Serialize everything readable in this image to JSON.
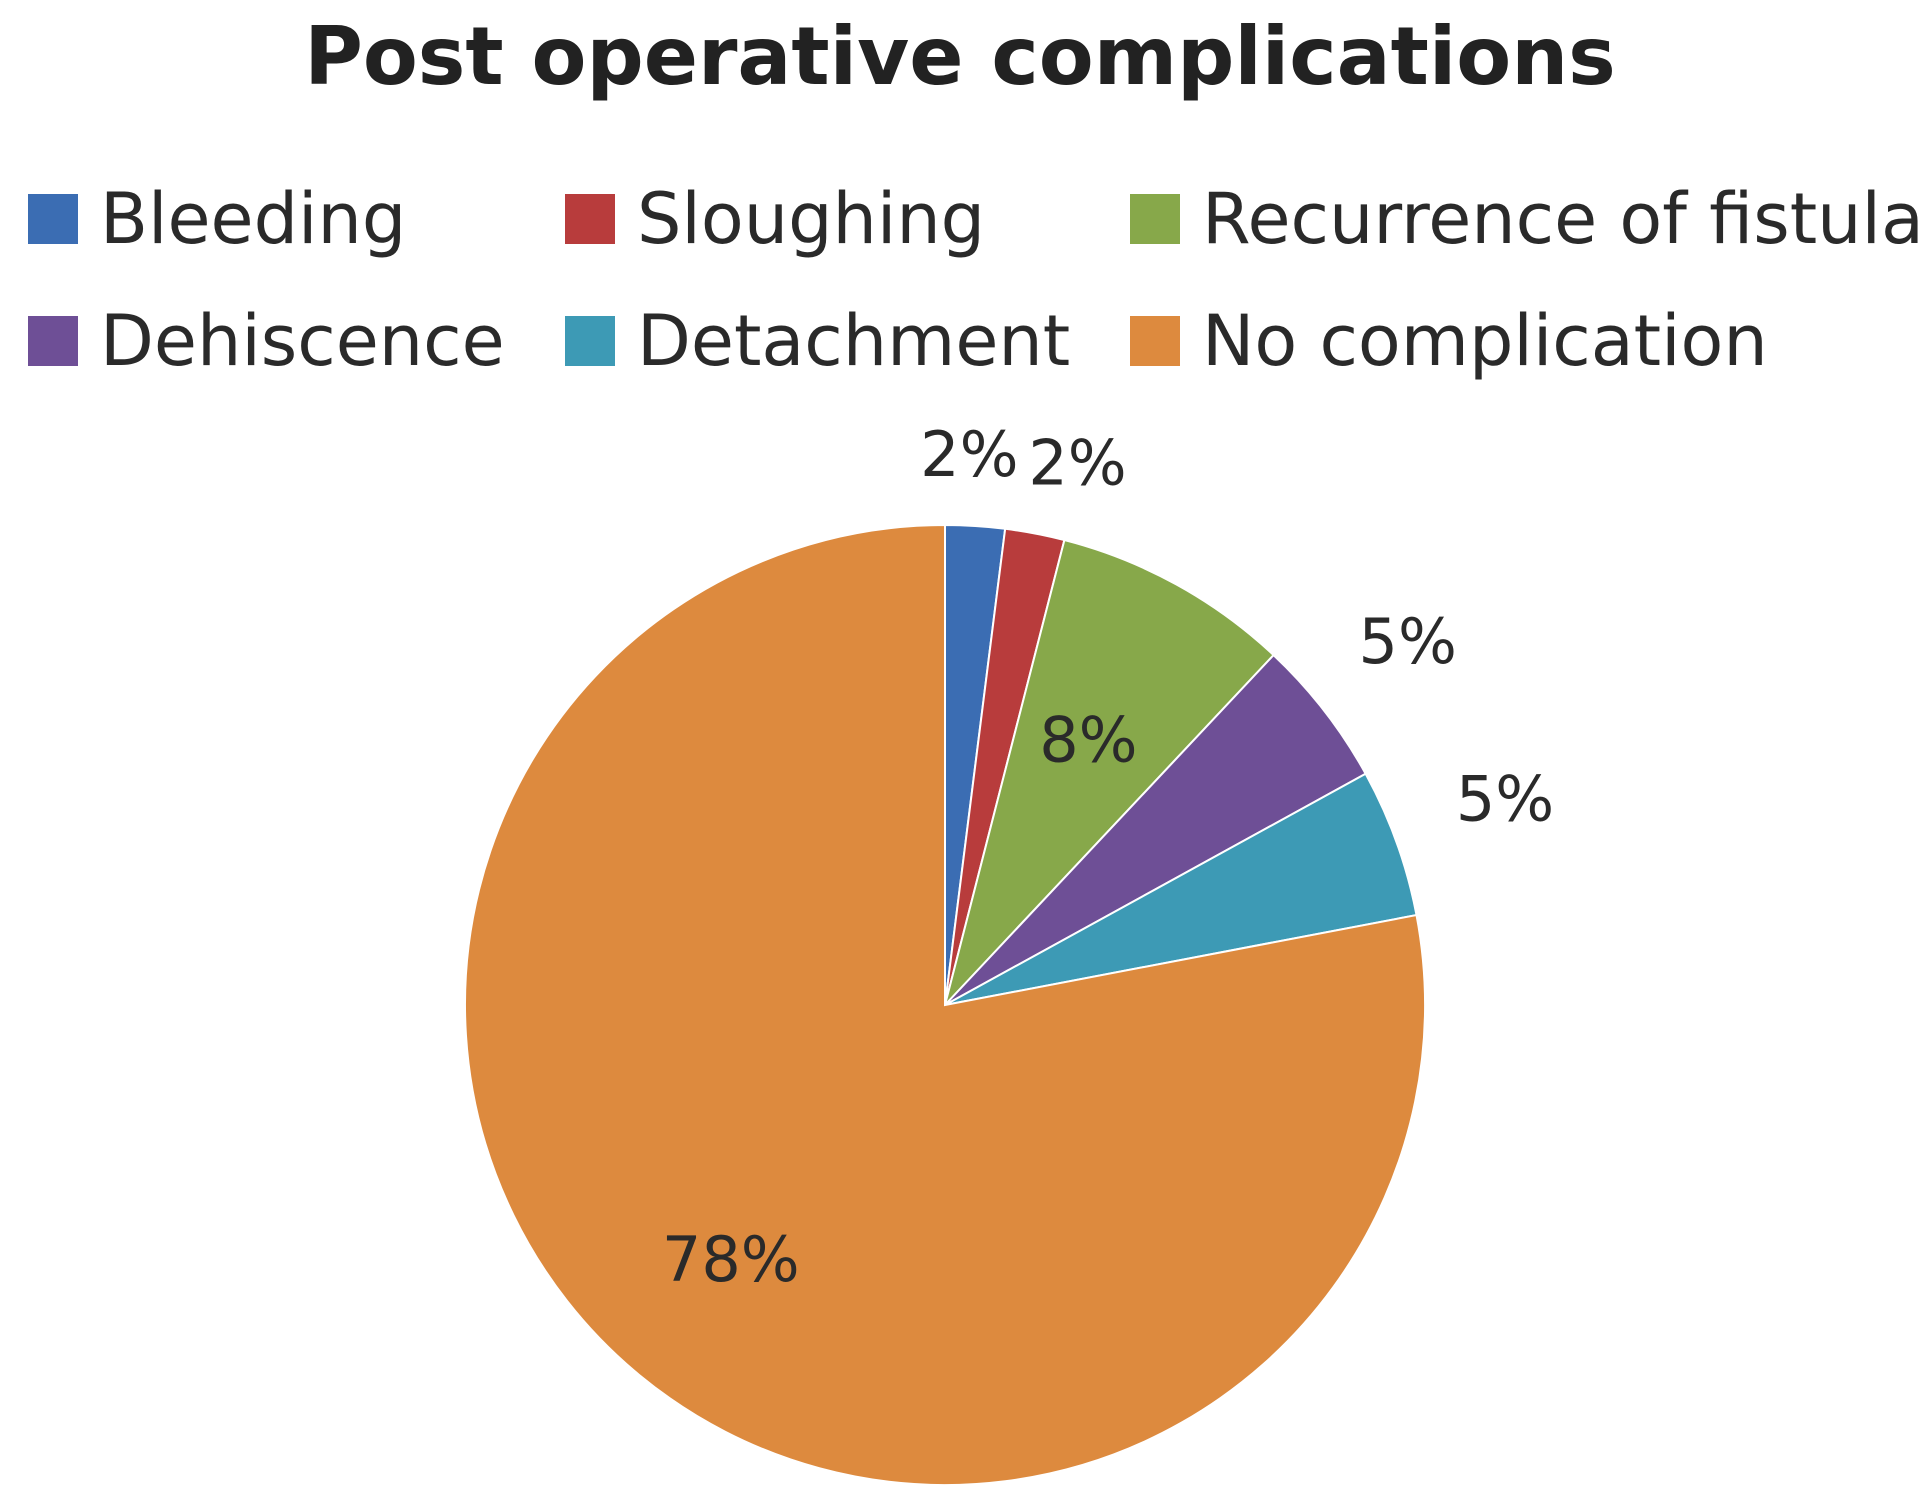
{
  "chart_data": {
    "type": "pie",
    "title": "Post operative complications",
    "categories": [
      "Bleeding",
      "Sloughing",
      "Recurrence of fistula",
      "Dehiscence",
      "Detachment",
      "No complication"
    ],
    "values": [
      2,
      2,
      8,
      5,
      5,
      78
    ],
    "value_labels": [
      "2%",
      "2%",
      "8%",
      "5%",
      "5%",
      "78%"
    ],
    "colors": [
      "#3b6db3",
      "#b83c3c",
      "#87a84a",
      "#6e4f96",
      "#3d9ab5",
      "#dd8a3e"
    ],
    "legend_placement": "top"
  }
}
